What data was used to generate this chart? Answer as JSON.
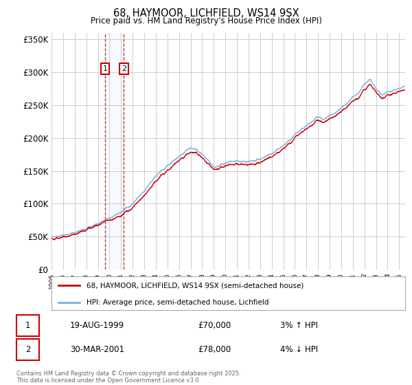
{
  "title": "68, HAYMOOR, LICHFIELD, WS14 9SX",
  "subtitle": "Price paid vs. HM Land Registry's House Price Index (HPI)",
  "ylabel_ticks": [
    "£0",
    "£50K",
    "£100K",
    "£150K",
    "£200K",
    "£250K",
    "£300K",
    "£350K"
  ],
  "ylim": [
    0,
    360000
  ],
  "xlim_start": 1995.0,
  "xlim_end": 2025.5,
  "legend_line1": "68, HAYMOOR, LICHFIELD, WS14 9SX (semi-detached house)",
  "legend_line2": "HPI: Average price, semi-detached house, Lichfield",
  "transaction1_date": "19-AUG-1999",
  "transaction1_price": "£70,000",
  "transaction1_pct": "3% ↑ HPI",
  "transaction2_date": "30-MAR-2001",
  "transaction2_price": "£78,000",
  "transaction2_pct": "4% ↓ HPI",
  "footer": "Contains HM Land Registry data © Crown copyright and database right 2025.\nThis data is licensed under the Open Government Licence v3.0.",
  "red_color": "#cc0000",
  "blue_color": "#7aaedb",
  "bg_color": "#ffffff",
  "grid_color": "#cccccc",
  "transaction1_x": 1999.63,
  "transaction2_x": 2001.25,
  "shaded_region_color": "#ddeeff",
  "marker1_y": 305000,
  "marker2_y": 305000
}
